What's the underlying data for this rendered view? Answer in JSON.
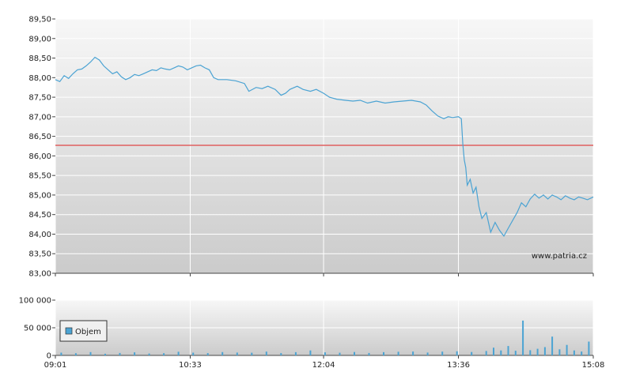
{
  "chart_data": [
    {
      "type": "line",
      "title": "",
      "xlabel": "",
      "ylabel": "",
      "ylim": [
        83.0,
        89.5
      ],
      "y_ticks": [
        "83,00",
        "83,50",
        "84,00",
        "84,50",
        "85,00",
        "85,50",
        "86,00",
        "86,50",
        "87,00",
        "87,50",
        "88,00",
        "88,50",
        "89,00",
        "89,50"
      ],
      "reference_line": {
        "value": 86.27,
        "color": "#e06060"
      },
      "series": [
        {
          "color": "#4ba3d3",
          "points": [
            [
              "09:01",
              87.95
            ],
            [
              "09:04",
              87.9
            ],
            [
              "09:07",
              88.05
            ],
            [
              "09:10",
              87.98
            ],
            [
              "09:13",
              88.1
            ],
            [
              "09:16",
              88.2
            ],
            [
              "09:19",
              88.22
            ],
            [
              "09:22",
              88.3
            ],
            [
              "09:25",
              88.4
            ],
            [
              "09:28",
              88.52
            ],
            [
              "09:31",
              88.45
            ],
            [
              "09:34",
              88.3
            ],
            [
              "09:37",
              88.2
            ],
            [
              "09:40",
              88.1
            ],
            [
              "09:43",
              88.15
            ],
            [
              "09:46",
              88.02
            ],
            [
              "09:49",
              87.95
            ],
            [
              "09:52",
              88.0
            ],
            [
              "09:55",
              88.08
            ],
            [
              "09:58",
              88.05
            ],
            [
              "10:01",
              88.1
            ],
            [
              "10:04",
              88.15
            ],
            [
              "10:07",
              88.2
            ],
            [
              "10:10",
              88.18
            ],
            [
              "10:13",
              88.25
            ],
            [
              "10:16",
              88.22
            ],
            [
              "10:19",
              88.2
            ],
            [
              "10:22",
              88.25
            ],
            [
              "10:25",
              88.3
            ],
            [
              "10:28",
              88.27
            ],
            [
              "10:31",
              88.2
            ],
            [
              "10:34",
              88.25
            ],
            [
              "10:37",
              88.3
            ],
            [
              "10:40",
              88.32
            ],
            [
              "10:43",
              88.25
            ],
            [
              "10:46",
              88.2
            ],
            [
              "10:49",
              88.0
            ],
            [
              "10:52",
              87.95
            ],
            [
              "10:58",
              87.95
            ],
            [
              "11:04",
              87.92
            ],
            [
              "11:10",
              87.85
            ],
            [
              "11:13",
              87.65
            ],
            [
              "11:18",
              87.75
            ],
            [
              "11:22",
              87.72
            ],
            [
              "11:26",
              87.78
            ],
            [
              "11:31",
              87.7
            ],
            [
              "11:35",
              87.55
            ],
            [
              "11:38",
              87.6
            ],
            [
              "11:41",
              87.7
            ],
            [
              "11:46",
              87.78
            ],
            [
              "11:50",
              87.7
            ],
            [
              "11:55",
              87.65
            ],
            [
              "11:59",
              87.7
            ],
            [
              "12:04",
              87.6
            ],
            [
              "12:08",
              87.5
            ],
            [
              "12:13",
              87.45
            ],
            [
              "12:19",
              87.42
            ],
            [
              "12:24",
              87.4
            ],
            [
              "12:29",
              87.42
            ],
            [
              "12:34",
              87.35
            ],
            [
              "12:40",
              87.4
            ],
            [
              "12:46",
              87.35
            ],
            [
              "12:52",
              87.38
            ],
            [
              "12:58",
              87.4
            ],
            [
              "13:04",
              87.42
            ],
            [
              "13:10",
              87.38
            ],
            [
              "13:14",
              87.3
            ],
            [
              "13:18",
              87.15
            ],
            [
              "13:22",
              87.02
            ],
            [
              "13:26",
              86.95
            ],
            [
              "13:29",
              87.0
            ],
            [
              "13:32",
              86.98
            ],
            [
              "13:36",
              87.0
            ],
            [
              "13:38",
              86.95
            ],
            [
              "13:39",
              86.3
            ],
            [
              "13:40",
              85.9
            ],
            [
              "13:41",
              85.7
            ],
            [
              "13:42",
              85.25
            ],
            [
              "13:44",
              85.4
            ],
            [
              "13:46",
              85.05
            ],
            [
              "13:48",
              85.2
            ],
            [
              "13:50",
              84.7
            ],
            [
              "13:52",
              84.4
            ],
            [
              "13:55",
              84.55
            ],
            [
              "13:58",
              84.05
            ],
            [
              "14:01",
              84.3
            ],
            [
              "14:04",
              84.1
            ],
            [
              "14:07",
              83.95
            ],
            [
              "14:10",
              84.15
            ],
            [
              "14:13",
              84.35
            ],
            [
              "14:16",
              84.55
            ],
            [
              "14:19",
              84.8
            ],
            [
              "14:22",
              84.7
            ],
            [
              "14:25",
              84.9
            ],
            [
              "14:28",
              85.02
            ],
            [
              "14:31",
              84.92
            ],
            [
              "14:34",
              85.0
            ],
            [
              "14:37",
              84.9
            ],
            [
              "14:40",
              85.0
            ],
            [
              "14:43",
              84.95
            ],
            [
              "14:46",
              84.88
            ],
            [
              "14:49",
              84.98
            ],
            [
              "14:52",
              84.92
            ],
            [
              "14:55",
              84.88
            ],
            [
              "14:58",
              84.95
            ],
            [
              "15:01",
              84.92
            ],
            [
              "15:04",
              84.88
            ],
            [
              "15:08",
              84.95
            ]
          ]
        }
      ]
    },
    {
      "type": "bar",
      "title": "",
      "ylim": [
        0,
        100000
      ],
      "y_ticks": [
        "0",
        "50 000",
        "100 000"
      ],
      "legend": {
        "label": "Objem",
        "position": "left",
        "color": "#4ba3d3"
      },
      "series": [
        {
          "name": "Objem",
          "color": "#4ba3d3",
          "points": [
            [
              "09:05",
              5000
            ],
            [
              "09:15",
              4000
            ],
            [
              "09:25",
              6000
            ],
            [
              "09:35",
              3000
            ],
            [
              "09:45",
              4500
            ],
            [
              "09:55",
              5500
            ],
            [
              "10:05",
              3500
            ],
            [
              "10:15",
              4000
            ],
            [
              "10:25",
              6500
            ],
            [
              "10:35",
              5000
            ],
            [
              "10:45",
              4200
            ],
            [
              "10:55",
              6000
            ],
            [
              "11:05",
              5200
            ],
            [
              "11:15",
              4800
            ],
            [
              "11:25",
              6800
            ],
            [
              "11:35",
              4200
            ],
            [
              "11:45",
              5800
            ],
            [
              "11:55",
              9000
            ],
            [
              "12:05",
              5500
            ],
            [
              "12:15",
              4800
            ],
            [
              "12:25",
              6200
            ],
            [
              "12:35",
              4500
            ],
            [
              "12:45",
              5800
            ],
            [
              "12:55",
              6500
            ],
            [
              "13:05",
              7000
            ],
            [
              "13:15",
              5200
            ],
            [
              "13:25",
              6800
            ],
            [
              "13:35",
              7500
            ],
            [
              "13:45",
              6200
            ],
            [
              "13:55",
              8000
            ],
            [
              "14:00",
              14000
            ],
            [
              "14:05",
              9000
            ],
            [
              "14:10",
              17000
            ],
            [
              "14:15",
              8500
            ],
            [
              "14:20",
              63000
            ],
            [
              "14:25",
              9500
            ],
            [
              "14:30",
              12000
            ],
            [
              "14:35",
              15000
            ],
            [
              "14:40",
              34000
            ],
            [
              "14:45",
              11000
            ],
            [
              "14:50",
              19000
            ],
            [
              "14:55",
              9000
            ],
            [
              "15:00",
              7000
            ],
            [
              "15:05",
              25000
            ]
          ]
        }
      ]
    }
  ],
  "x_axis": {
    "start": "09:01",
    "end": "15:08",
    "ticks": [
      "09:01",
      "10:33",
      "12:04",
      "13:36",
      "15:08"
    ]
  },
  "watermark": "www.patria.cz"
}
